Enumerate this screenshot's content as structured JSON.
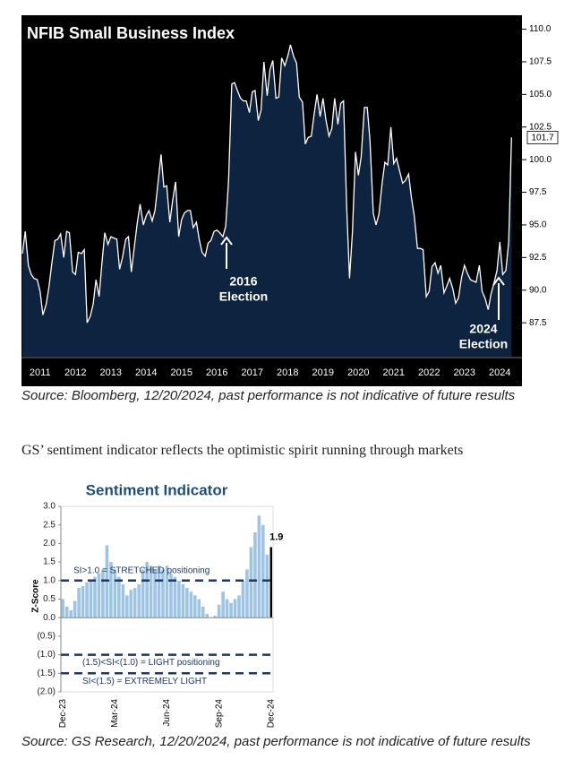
{
  "chart_data": [
    {
      "type": "area",
      "title": "NFIB Small Business Index",
      "series": [
        {
          "color": "#ffffff",
          "fill": "#0d2340",
          "x": [
            2011.0,
            2011.08,
            2011.17,
            2011.25,
            2011.33,
            2011.42,
            2011.5,
            2011.58,
            2011.67,
            2011.75,
            2011.83,
            2011.92,
            2012.0,
            2012.08,
            2012.17,
            2012.25,
            2012.33,
            2012.42,
            2012.5,
            2012.58,
            2012.67,
            2012.75,
            2012.83,
            2012.92,
            2013.0,
            2013.08,
            2013.17,
            2013.25,
            2013.33,
            2013.42,
            2013.5,
            2013.58,
            2013.67,
            2013.75,
            2013.83,
            2013.92,
            2014.0,
            2014.08,
            2014.17,
            2014.25,
            2014.33,
            2014.42,
            2014.5,
            2014.58,
            2014.67,
            2014.75,
            2014.83,
            2014.92,
            2015.0,
            2015.08,
            2015.17,
            2015.25,
            2015.33,
            2015.42,
            2015.5,
            2015.58,
            2015.67,
            2015.75,
            2015.83,
            2015.92,
            2016.0,
            2016.08,
            2016.17,
            2016.25,
            2016.33,
            2016.42,
            2016.5,
            2016.58,
            2016.67,
            2016.75,
            2016.83,
            2016.92,
            2017.0,
            2017.08,
            2017.17,
            2017.25,
            2017.33,
            2017.42,
            2017.5,
            2017.58,
            2017.67,
            2017.75,
            2017.83,
            2017.92,
            2018.0,
            2018.08,
            2018.17,
            2018.25,
            2018.33,
            2018.42,
            2018.5,
            2018.58,
            2018.67,
            2018.75,
            2018.83,
            2018.92,
            2019.0,
            2019.08,
            2019.17,
            2019.25,
            2019.33,
            2019.42,
            2019.5,
            2019.58,
            2019.67,
            2019.75,
            2019.83,
            2019.92,
            2020.0,
            2020.08,
            2020.17,
            2020.25,
            2020.33,
            2020.42,
            2020.5,
            2020.58,
            2020.67,
            2020.75,
            2020.83,
            2020.92,
            2021.0,
            2021.08,
            2021.17,
            2021.25,
            2021.33,
            2021.42,
            2021.5,
            2021.58,
            2021.67,
            2021.75,
            2021.83,
            2021.92,
            2022.0,
            2022.08,
            2022.17,
            2022.25,
            2022.33,
            2022.42,
            2022.5,
            2022.58,
            2022.67,
            2022.75,
            2022.83,
            2022.92,
            2023.0,
            2023.08,
            2023.17,
            2023.25,
            2023.33,
            2023.42,
            2023.5,
            2023.58,
            2023.67,
            2023.75,
            2023.83,
            2023.92,
            2024.0,
            2024.08,
            2024.17,
            2024.25,
            2024.33,
            2024.42,
            2024.5,
            2024.58,
            2024.67,
            2024.75,
            2024.83
          ],
          "values": [
            92.8,
            94.5,
            91.9,
            91.2,
            90.9,
            90.8,
            89.9,
            88.1,
            88.9,
            90.2,
            92.0,
            93.8,
            93.9,
            94.3,
            92.5,
            94.5,
            94.4,
            91.4,
            91.2,
            92.9,
            92.8,
            93.1,
            87.5,
            88.0,
            88.9,
            90.8,
            89.5,
            92.1,
            94.4,
            93.5,
            94.1,
            94.0,
            93.9,
            91.6,
            92.5,
            93.9,
            94.1,
            91.4,
            93.4,
            95.2,
            96.6,
            95.0,
            95.7,
            96.1,
            95.3,
            96.1,
            98.1,
            100.4,
            97.9,
            98.0,
            95.2,
            96.9,
            98.3,
            94.1,
            95.4,
            95.9,
            96.1,
            96.1,
            94.8,
            95.2,
            93.9,
            92.9,
            92.6,
            93.6,
            93.8,
            94.5,
            94.6,
            94.4,
            94.1,
            94.9,
            98.4,
            105.8,
            105.9,
            105.3,
            104.7,
            104.5,
            104.5,
            103.6,
            105.2,
            105.3,
            103.0,
            103.8,
            107.5,
            104.9,
            106.9,
            107.6,
            104.7,
            104.8,
            107.8,
            107.2,
            107.9,
            108.8,
            107.9,
            107.4,
            104.8,
            104.4,
            101.2,
            101.7,
            101.8,
            103.5,
            105.0,
            103.3,
            104.7,
            103.1,
            101.8,
            102.4,
            104.7,
            102.7,
            104.3,
            104.5,
            96.4,
            90.9,
            94.4,
            100.6,
            98.8,
            100.2,
            104.0,
            104.0,
            101.4,
            95.9,
            95.0,
            95.8,
            98.2,
            99.8,
            99.6,
            102.5,
            99.7,
            100.1,
            99.1,
            98.2,
            98.4,
            98.9,
            97.1,
            95.7,
            93.2,
            93.2,
            93.1,
            89.5,
            89.9,
            91.8,
            92.1,
            91.3,
            91.9,
            89.8,
            90.3,
            90.9,
            90.1,
            89.0,
            89.4,
            91.0,
            91.9,
            91.3,
            90.8,
            90.7,
            90.6,
            91.9,
            89.9,
            89.4,
            88.5,
            89.7,
            90.5,
            91.5,
            93.7,
            91.2,
            91.5,
            93.7,
            101.7
          ]
        }
      ],
      "last_value_label": true,
      "xlim": [
        2011.0,
        2025.1
      ],
      "xticks": [
        {
          "value": 2011.5,
          "label": "2011"
        },
        {
          "value": 2012.5,
          "label": "2012"
        },
        {
          "value": 2013.5,
          "label": "2013"
        },
        {
          "value": 2014.5,
          "label": "2014"
        },
        {
          "value": 2015.5,
          "label": "2015"
        },
        {
          "value": 2016.5,
          "label": "2016"
        },
        {
          "value": 2017.5,
          "label": "2017"
        },
        {
          "value": 2018.5,
          "label": "2018"
        },
        {
          "value": 2019.5,
          "label": "2019"
        },
        {
          "value": 2020.5,
          "label": "2020"
        },
        {
          "value": 2021.5,
          "label": "2021"
        },
        {
          "value": 2022.5,
          "label": "2022"
        },
        {
          "value": 2023.5,
          "label": "2023"
        },
        {
          "value": 2024.5,
          "label": "2024"
        }
      ],
      "ylim": [
        84.9,
        111
      ],
      "yticks": [
        {
          "value": 87.5,
          "label": "87.5"
        },
        {
          "value": 90,
          "label": "90.0"
        },
        {
          "value": 92.5,
          "label": "92.5"
        },
        {
          "value": 95,
          "label": "95.0"
        },
        {
          "value": 97.5,
          "label": "97.5"
        },
        {
          "value": 100,
          "label": "100.0"
        },
        {
          "value": 102.5,
          "label": "102.5"
        },
        {
          "value": 105,
          "label": "105.0"
        },
        {
          "value": 107.5,
          "label": "107.5"
        },
        {
          "value": 110,
          "label": "110.0"
        }
      ],
      "annotations": [
        {
          "lines": [
            "2016",
            "Election"
          ]
        },
        {
          "lines": [
            "2024",
            "Election"
          ]
        }
      ]
    },
    {
      "type": "bar",
      "title": "Sentiment Indicator",
      "ylabel": "Z-Score",
      "categories": [
        "Dec-23",
        null,
        null,
        null,
        null,
        null,
        null,
        null,
        null,
        null,
        null,
        null,
        null,
        "Mar-24",
        null,
        null,
        null,
        null,
        null,
        null,
        null,
        null,
        null,
        null,
        null,
        null,
        "Jun-24",
        null,
        null,
        null,
        null,
        null,
        null,
        null,
        null,
        null,
        null,
        null,
        null,
        "Sep-24",
        null,
        null,
        null,
        null,
        null,
        null,
        null,
        null,
        null,
        null,
        null,
        null,
        "Dec-24"
      ],
      "series": [
        {
          "color": "#9dc3e6",
          "values": [
            0.5,
            0.3,
            0.2,
            0.45,
            0.8,
            0.85,
            0.95,
            1.0,
            1.1,
            1.2,
            1.3,
            1.95,
            1.5,
            1.3,
            1.1,
            0.9,
            0.6,
            0.75,
            0.8,
            0.9,
            1.3,
            1.5,
            1.4,
            1.3,
            1.4,
            1.3,
            1.4,
            1.2,
            1.1,
            1.0,
            0.9,
            0.8,
            0.7,
            0.6,
            0.5,
            0.3,
            0.1,
            0.0,
            0.05,
            0.35,
            0.7,
            0.5,
            0.4,
            0.5,
            0.6,
            1.0,
            1.3,
            1.9,
            2.3,
            2.75,
            2.5,
            1.7,
            null
          ]
        },
        {
          "color": "#000000",
          "data_labels": true,
          "values": [
            null,
            null,
            null,
            null,
            null,
            null,
            null,
            null,
            null,
            null,
            null,
            null,
            null,
            null,
            null,
            null,
            null,
            null,
            null,
            null,
            null,
            null,
            null,
            null,
            null,
            null,
            null,
            null,
            null,
            null,
            null,
            null,
            null,
            null,
            null,
            null,
            null,
            null,
            null,
            null,
            null,
            null,
            null,
            null,
            null,
            null,
            null,
            null,
            null,
            null,
            null,
            null,
            1.9
          ]
        }
      ],
      "ylim": [
        -2,
        3
      ],
      "yticks": [
        {
          "value": 3,
          "label": "3.0"
        },
        {
          "value": 2.5,
          "label": "2.5"
        },
        {
          "value": 2,
          "label": "2.0"
        },
        {
          "value": 1.5,
          "label": "1.5"
        },
        {
          "value": 1,
          "label": "1.0"
        },
        {
          "value": 0.5,
          "label": "0.5"
        },
        {
          "value": 0,
          "label": "0.0"
        },
        {
          "value": -0.5,
          "label": "(0.5)"
        },
        {
          "value": -1,
          "label": "(1.0)"
        },
        {
          "value": -1.5,
          "label": "(1.5)"
        },
        {
          "value": -2,
          "label": "(2.0)"
        }
      ],
      "ref_lines": [
        {
          "value": 1,
          "label": "SI>1.0 = STRETCHED positioning"
        },
        {
          "value": -1,
          "label": "(1.5)<SI<(1.0) = LIGHT positioning"
        },
        {
          "value": -1.5,
          "label": "SI<(1.5) = EXTREMELY LIGHT"
        }
      ]
    }
  ],
  "captions": [
    "Source: Bloomberg, 12/20/2024, past performance is not indicative of future results",
    "Source: GS Research, 12/20/2024, past performance is not indicative of future results"
  ],
  "body_text": "GS’ sentiment indicator reflects the optimistic spirit running through markets"
}
